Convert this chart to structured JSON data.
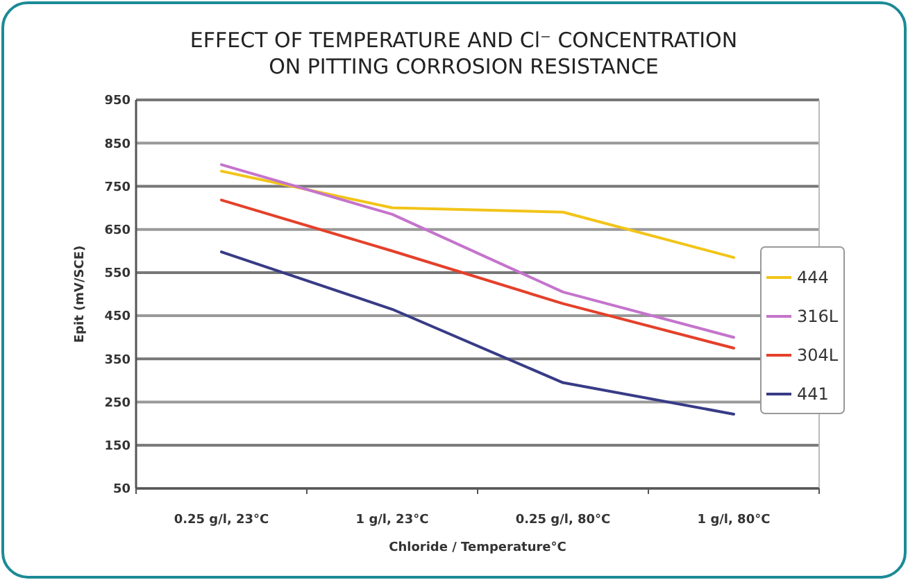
{
  "chart_data": {
    "type": "line",
    "title": "EFFECT OF TEMPERATURE AND Cl⁻ CONCENTRATION\nON PITTING CORROSION RESISTANCE",
    "xlabel": "Chloride / Temperature°C",
    "ylabel": "Epit (mV/SCE)",
    "categories": [
      "0.25 g/l, 23°C",
      "1 g/l, 23°C",
      "0.25 g/l, 80°C",
      "1 g/l, 80°C"
    ],
    "series": [
      {
        "name": "444",
        "color": "#f2c418",
        "values": [
          785,
          700,
          690,
          585
        ]
      },
      {
        "name": "316L",
        "color": "#c474cc",
        "values": [
          800,
          685,
          505,
          400
        ]
      },
      {
        "name": "304L",
        "color": "#e4402a",
        "values": [
          718,
          600,
          478,
          375
        ]
      },
      {
        "name": "441",
        "color": "#383b86",
        "values": [
          598,
          465,
          295,
          222
        ]
      }
    ],
    "ylim": [
      50,
      950
    ],
    "yticks": [
      50,
      150,
      250,
      350,
      450,
      550,
      650,
      750,
      850,
      950
    ],
    "grid": "y",
    "legend": "right",
    "marker": "none",
    "line_style": "solid"
  }
}
